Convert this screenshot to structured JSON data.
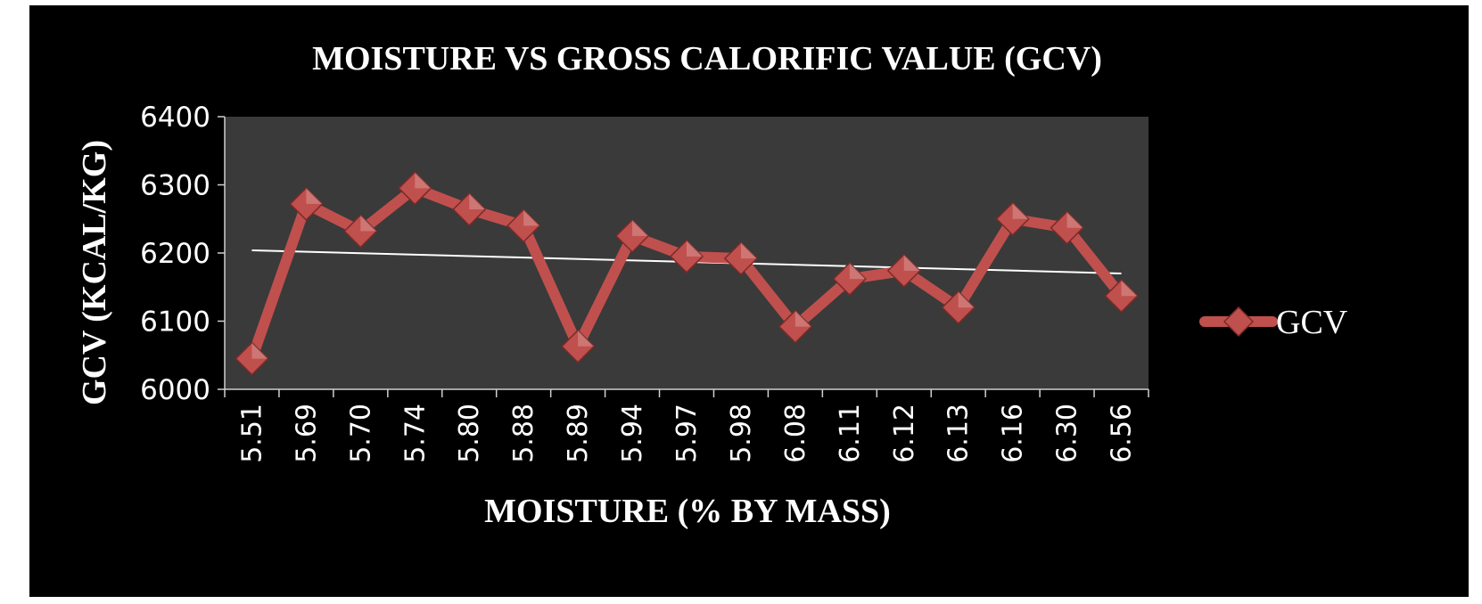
{
  "chart_data": {
    "type": "line",
    "title": "MOISTURE VS GROSS CALORIFIC VALUE (GCV)",
    "xlabel": "MOISTURE (% BY MASS)",
    "ylabel": "GCV (KCAL/KG)",
    "categories": [
      "5.51",
      "5.69",
      "5.70",
      "5.74",
      "5.80",
      "5.88",
      "5.89",
      "5.94",
      "5.97",
      "5.98",
      "6.08",
      "6.11",
      "6.12",
      "6.13",
      "6.16",
      "6.30",
      "6.56"
    ],
    "series": [
      {
        "name": "GCV",
        "color": "#c0504d",
        "marker": "diamond",
        "values": [
          6045,
          6272,
          6232,
          6295,
          6264,
          6240,
          6063,
          6225,
          6195,
          6192,
          6092,
          6162,
          6174,
          6120,
          6250,
          6237,
          6137
        ]
      }
    ],
    "trendline": {
      "type": "linear",
      "color": "#ffffff",
      "start": 6204,
      "end": 6170
    },
    "ylim": [
      6000,
      6400
    ],
    "yticks": [
      "6000",
      "6100",
      "6200",
      "6300",
      "6400"
    ],
    "grid": false,
    "legend": "right",
    "background": "#000000",
    "plot_background": "#3a3a3a"
  }
}
